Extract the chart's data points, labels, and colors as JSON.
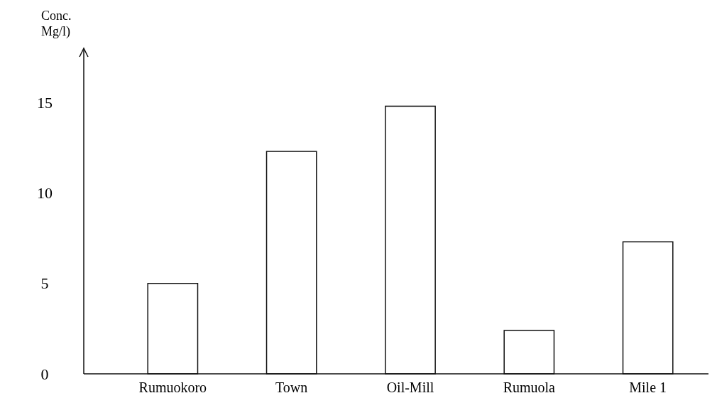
{
  "chart_data": {
    "type": "bar",
    "ylabel": "Conc. Mg/l)",
    "categories": [
      "Rumuokoro",
      "Town",
      "Oil-Mill",
      "Rumuola",
      "Mile 1"
    ],
    "values": [
      5.0,
      12.3,
      14.8,
      2.4,
      7.3
    ],
    "color": "#ffffff",
    "ylim": [
      0,
      18
    ],
    "yticks": [
      0,
      5,
      10,
      15
    ],
    "grid": false
  }
}
